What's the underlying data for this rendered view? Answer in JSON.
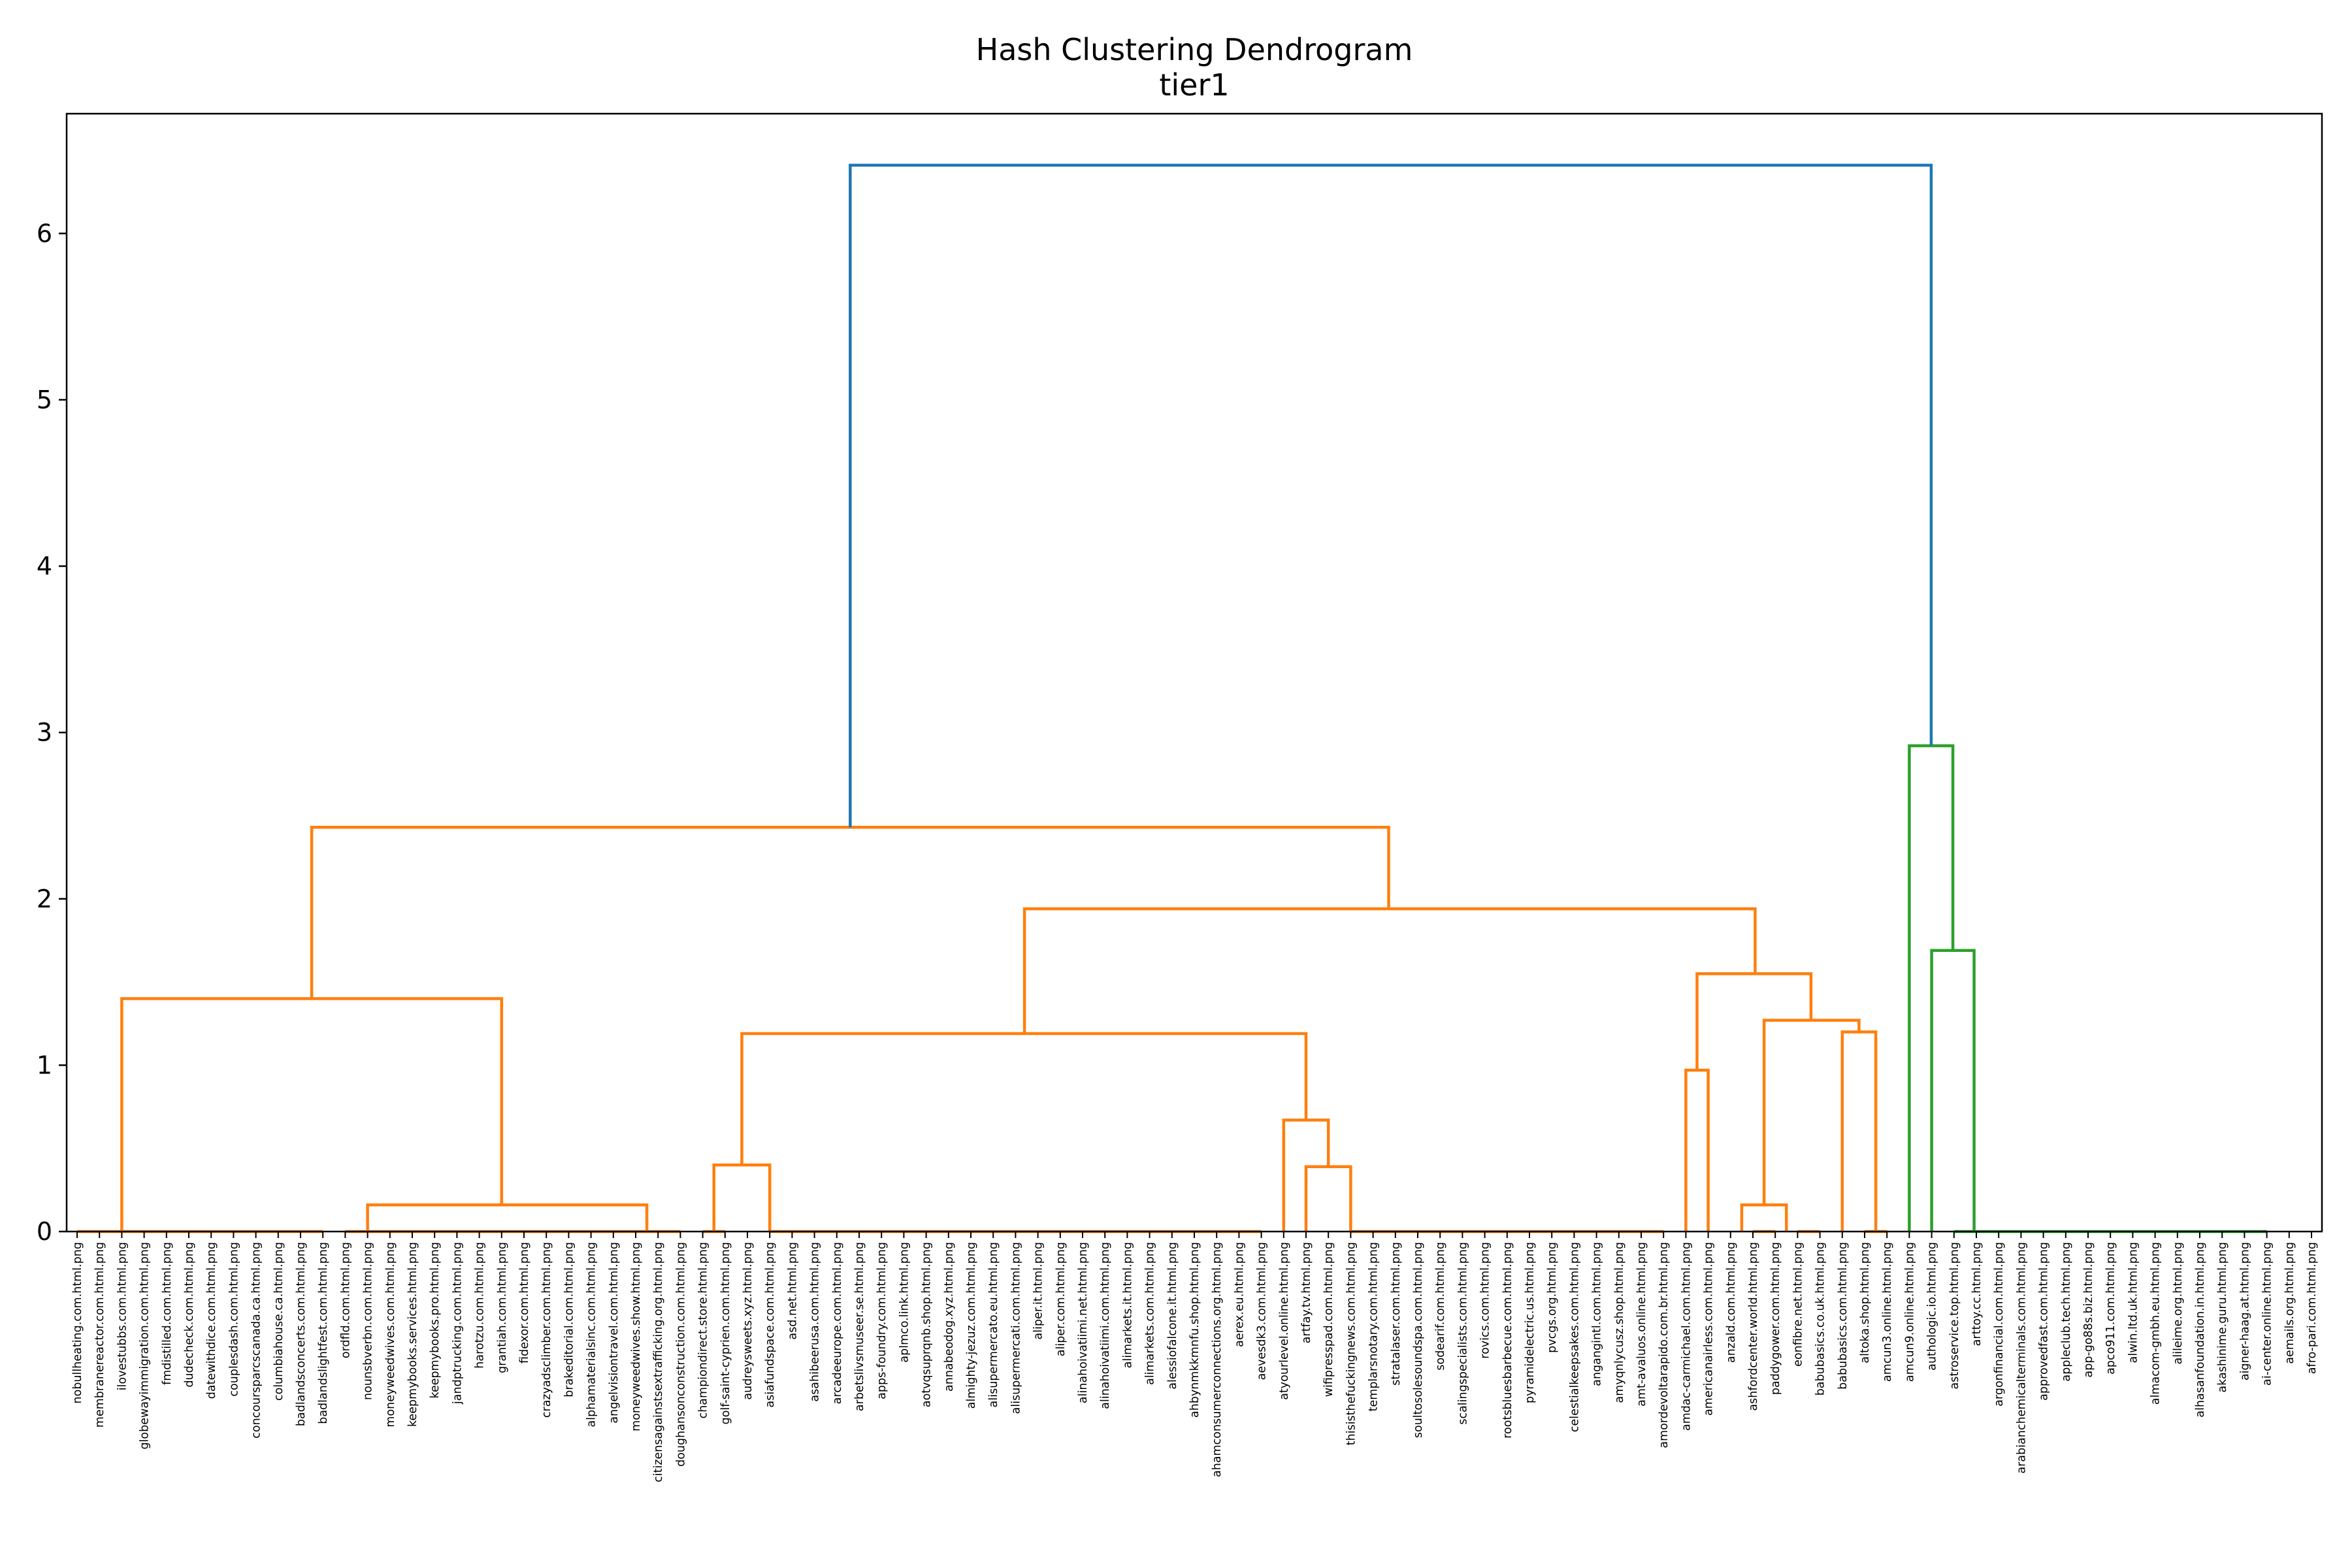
{
  "chart_data": {
    "type": "dendrogram",
    "title": "Hash Clustering Dendrogram",
    "subtitle": "tier1",
    "xlabel": "",
    "ylabel": "",
    "ylim": [
      0,
      6.72
    ],
    "yticks": [
      0,
      1,
      2,
      3,
      4,
      5,
      6
    ],
    "grid": false,
    "colors": {
      "link_orange": "#ff7f0e",
      "link_green": "#2ca02c",
      "link_above": "#1f77b4"
    },
    "leaves": [
      "nobullheating.com.html.png",
      "membranereactor.com.html.png",
      "ilovestubbs.com.html.png",
      "globewayimmigration.com.html.png",
      "fmdistilled.com.html.png",
      "dudecheck.com.html.png",
      "datewithdice.com.html.png",
      "couplesdash.com.html.png",
      "concoursparcscanada.ca.html.png",
      "columbiahouse.ca.html.png",
      "badlandsconcerts.com.html.png",
      "badlandslightfest.com.html.png",
      "ordfld.com.html.png",
      "nounsbverbn.com.html.png",
      "moneyweedwives.com.html.png",
      "keepmybooks.services.html.png",
      "keepmybooks.pro.html.png",
      "jandptrucking.com.html.png",
      "harotzu.com.html.png",
      "grantiah.com.html.png",
      "fidexor.com.html.png",
      "crazyadsclimber.com.html.png",
      "brakeditorial.com.html.png",
      "alphamaterialsinc.com.html.png",
      "angelvisiontravel.com.html.png",
      "moneyweedwives.show.html.png",
      "citizensagainstsextrafficking.org.html.png",
      "doughansonconstruction.com.html.png",
      "championdirect.store.html.png",
      "golf-saint-cyprien.com.html.png",
      "audreysweets.xyz.html.png",
      "asiafundspace.com.html.png",
      "asd.net.html.png",
      "asahibeerusa.com.html.png",
      "arcadeeurope.com.html.png",
      "arbetslivsmuseer.se.html.png",
      "apps-foundry.com.html.png",
      "aplmco.link.html.png",
      "aotvqsuprqnb.shop.html.png",
      "annabeodog.xyz.html.png",
      "almighty-jezuz.com.html.png",
      "alisupermercato.eu.html.png",
      "alisupermercati.com.html.png",
      "aliper.it.html.png",
      "aliper.com.html.png",
      "alinahoivatiimi.net.html.png",
      "alinahoivatiimi.com.html.png",
      "alimarkets.it.html.png",
      "alimarkets.com.html.png",
      "alessiofalcone.it.html.png",
      "ahbynmkkmnfu.shop.html.png",
      "ahamconsumerconnections.org.html.png",
      "aerex.eu.html.png",
      "aevesdk3.com.html.png",
      "atyourlevel.online.html.png",
      "artfay.tv.html.png",
      "wifipresspad.com.html.png",
      "thisisthefuckingnews.com.html.png",
      "templarsnotary.com.html.png",
      "stratalaser.com.html.png",
      "soultosolesoundspa.com.html.png",
      "sodearif.com.html.png",
      "scalingspecialists.com.html.png",
      "rovics.com.html.png",
      "rootsbluesbarbecue.com.html.png",
      "pyramidelectric.us.html.png",
      "pvcgs.org.html.png",
      "celestialkeepsakes.com.html.png",
      "angangintl.com.html.png",
      "amyqnlycusz.shop.html.png",
      "amt-avaluos.online.html.png",
      "amordevoltarapido.com.br.html.png",
      "amdac-carmichael.com.html.png",
      "americanairless.com.html.png",
      "anzald.com.html.png",
      "ashfordcenter.world.html.png",
      "paddygower.com.html.png",
      "eonfibre.net.html.png",
      "babubasics.co.uk.html.png",
      "babubasics.com.html.png",
      "altoka.shop.html.png",
      "amcun3.online.html.png",
      "amcun9.online.html.png",
      "authologic.io.html.png",
      "astroservice.top.html.png",
      "arttoy.cc.html.png",
      "argonfinancial.com.html.png",
      "arabianchemicalterminals.com.html.png",
      "approvedfast.com.html.png",
      "appleclub.tech.html.png",
      "app-go88s.biz.html.png",
      "apco911.com.html.png",
      "alwin.ltd.uk.html.png",
      "almacom-gmbh.eu.html.png",
      "alileime.org.html.png",
      "alhasanfoundation.in.html.png",
      "akashinime.guru.html.png",
      "aigner-haag.at.html.png",
      "ai-center.online.html.png",
      "aemails.org.html.png",
      "afro-pari.com.html.png"
    ],
    "links": [
      {
        "a": 0,
        "b": 11,
        "h": 0,
        "c": "orange"
      },
      {
        "a": 12,
        "b": 27,
        "h": 0,
        "c": "orange"
      },
      {
        "a": 28,
        "b": 29,
        "h": 0,
        "c": "orange"
      },
      {
        "a": 31,
        "b": 53,
        "h": 0,
        "c": "orange"
      },
      {
        "a": 57,
        "b": 71,
        "h": 0,
        "c": "orange"
      },
      {
        "a": 75,
        "b": 76,
        "h": 0,
        "c": "orange"
      },
      {
        "a": 77,
        "b": 78,
        "h": 0,
        "c": "orange"
      },
      {
        "a": 80,
        "b": 81,
        "h": 0,
        "c": "orange"
      },
      {
        "a": 84,
        "b": 98,
        "h": 0,
        "c": "green"
      },
      {
        "a": 13,
        "b": 25.5,
        "h": 0.16,
        "c": "orange"
      },
      {
        "a": 2,
        "b": 19,
        "h": 1.4,
        "c": "orange"
      },
      {
        "a": 28.5,
        "b": 31,
        "h": 0.4,
        "c": "orange"
      },
      {
        "a": 55,
        "b": 57,
        "h": 0.39,
        "c": "orange"
      },
      {
        "a": 54,
        "b": 56,
        "h": 0.67,
        "c": "orange"
      },
      {
        "a": 29.75,
        "b": 55,
        "h": 1.19,
        "c": "orange"
      },
      {
        "a": 72,
        "b": 73,
        "h": 0.97,
        "c": "orange"
      },
      {
        "a": 74.5,
        "b": 76.5,
        "h": 0.16,
        "c": "orange"
      },
      {
        "a": 79,
        "b": 80.5,
        "h": 1.2,
        "c": "orange"
      },
      {
        "a": 75.5,
        "b": 79.75,
        "h": 1.27,
        "c": "orange"
      },
      {
        "a": 72.5,
        "b": 77.6,
        "h": 1.55,
        "c": "orange"
      },
      {
        "a": 42.4,
        "b": 75.1,
        "h": 1.94,
        "c": "orange"
      },
      {
        "a": 10.5,
        "b": 58.7,
        "h": 2.43,
        "c": "orange"
      },
      {
        "a": 83,
        "b": 84.9,
        "h": 1.69,
        "c": "green"
      },
      {
        "a": 82,
        "b": 83.95,
        "h": 2.92,
        "c": "green"
      },
      {
        "a": 34.6,
        "b": 82.98,
        "h": 6.41,
        "c": "blue"
      }
    ]
  }
}
